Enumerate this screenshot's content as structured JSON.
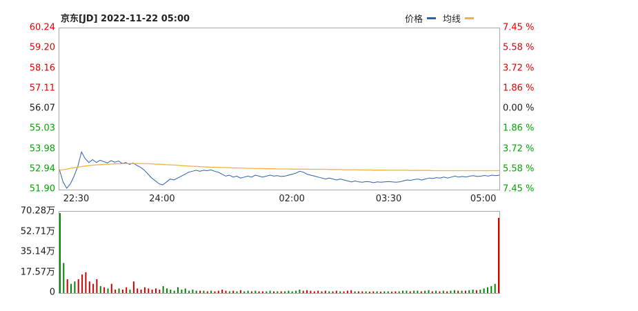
{
  "chart_data": {
    "type": "line",
    "title": "京东[JD] 2022-11-22 05:00",
    "legend_position": "top-right",
    "grid": false,
    "prev_close": 56.07,
    "x_axis": {
      "labels": [
        "22:30",
        "24:00",
        "02:00",
        "03:30",
        "05:00"
      ],
      "positions": [
        0.04,
        0.235,
        0.53,
        0.75,
        0.965
      ]
    },
    "price_axis": {
      "min": 51.9,
      "max": 60.24,
      "labels": [
        {
          "text": "60.24",
          "color": "#e60000"
        },
        {
          "text": "59.20",
          "color": "#e60000"
        },
        {
          "text": "58.16",
          "color": "#e60000"
        },
        {
          "text": "57.11",
          "color": "#e60000"
        },
        {
          "text": "56.07",
          "color": "#1a1a1a"
        },
        {
          "text": "55.03",
          "color": "#00a800"
        },
        {
          "text": "53.98",
          "color": "#00a800"
        },
        {
          "text": "52.94",
          "color": "#00a800"
        },
        {
          "text": "51.90",
          "color": "#00a800"
        }
      ]
    },
    "pct_axis": {
      "labels": [
        {
          "text": "7.45 %",
          "color": "#e60000"
        },
        {
          "text": "5.58 %",
          "color": "#e60000"
        },
        {
          "text": "3.72 %",
          "color": "#e60000"
        },
        {
          "text": "1.86 %",
          "color": "#e60000"
        },
        {
          "text": "0.00 %",
          "color": "#1a1a1a"
        },
        {
          "text": "1.86 %",
          "color": "#00a800"
        },
        {
          "text": "3.72 %",
          "color": "#00a800"
        },
        {
          "text": "5.58 %",
          "color": "#00a800"
        },
        {
          "text": "7.45 %",
          "color": "#00a800"
        }
      ]
    },
    "series": [
      {
        "name": "价格",
        "color": "#2b5fb0",
        "values": [
          52.95,
          52.3,
          51.97,
          52.2,
          52.6,
          53.1,
          53.85,
          53.5,
          53.3,
          53.45,
          53.3,
          53.42,
          53.35,
          53.28,
          53.4,
          53.32,
          53.38,
          53.25,
          53.3,
          53.2,
          53.28,
          53.15,
          53.05,
          52.9,
          52.7,
          52.5,
          52.35,
          52.2,
          52.15,
          52.3,
          52.45,
          52.4,
          52.5,
          52.6,
          52.7,
          52.8,
          52.85,
          52.9,
          52.85,
          52.9,
          52.88,
          52.92,
          52.85,
          52.8,
          52.7,
          52.6,
          52.65,
          52.55,
          52.6,
          52.5,
          52.55,
          52.6,
          52.55,
          52.65,
          52.6,
          52.55,
          52.6,
          52.65,
          52.6,
          52.62,
          52.58,
          52.6,
          52.65,
          52.7,
          52.75,
          52.85,
          52.8,
          52.7,
          52.65,
          52.6,
          52.55,
          52.5,
          52.45,
          52.5,
          52.45,
          52.4,
          52.45,
          52.4,
          52.35,
          52.3,
          52.35,
          52.3,
          52.28,
          52.32,
          52.3,
          52.26,
          52.3,
          52.28,
          52.3,
          52.32,
          52.3,
          52.28,
          52.3,
          52.35,
          52.4,
          52.38,
          52.42,
          52.45,
          52.4,
          52.45,
          52.5,
          52.48,
          52.52,
          52.5,
          52.55,
          52.5,
          52.55,
          52.6,
          52.55,
          52.58,
          52.55,
          52.6,
          52.62,
          52.58,
          52.6,
          52.63,
          52.6,
          52.65,
          52.62,
          52.65
        ]
      },
      {
        "name": "均线",
        "color": "#f0b43c",
        "values": [
          52.9,
          52.93,
          52.96,
          53.0,
          53.03,
          53.06,
          53.09,
          53.12,
          53.14,
          53.16,
          53.18,
          53.19,
          53.2,
          53.21,
          53.22,
          53.23,
          53.24,
          53.24,
          53.25,
          53.25,
          53.25,
          53.25,
          53.25,
          53.24,
          53.24,
          53.23,
          53.22,
          53.21,
          53.2,
          53.19,
          53.18,
          53.17,
          53.16,
          53.14,
          53.13,
          53.12,
          53.11,
          53.1,
          53.09,
          53.08,
          53.07,
          53.06,
          53.06,
          53.05,
          53.04,
          53.04,
          53.03,
          53.02,
          53.02,
          53.01,
          53.01,
          53.0,
          53.0,
          52.99,
          52.99,
          52.99,
          52.98,
          52.98,
          52.98,
          52.97,
          52.97,
          52.97,
          52.97,
          52.96,
          52.96,
          52.96,
          52.96,
          52.96,
          52.95,
          52.95,
          52.95,
          52.95,
          52.95,
          52.94,
          52.94,
          52.94,
          52.94,
          52.93,
          52.93,
          52.93,
          52.93,
          52.92,
          52.92,
          52.92,
          52.92,
          52.91,
          52.91,
          52.91,
          52.91,
          52.9,
          52.9,
          52.9,
          52.9,
          52.9,
          52.9,
          52.89,
          52.89,
          52.89,
          52.89,
          52.89,
          52.89,
          52.88,
          52.88,
          52.88,
          52.88,
          52.88,
          52.88,
          52.88,
          52.88,
          52.88,
          52.88,
          52.88,
          52.88,
          52.88,
          52.88,
          52.88,
          52.88,
          52.88,
          52.88,
          52.88
        ]
      }
    ],
    "volume": {
      "unit": "万",
      "max": 70.28,
      "labels": [
        "70.28万",
        "52.71万",
        "35.14万",
        "17.57万",
        "0"
      ],
      "label_color": "#1a1a1a",
      "green": "#008800",
      "red": "#d40000",
      "values": [
        69,
        26,
        12,
        8,
        10,
        12,
        16,
        18,
        10,
        8,
        12,
        6,
        5,
        4,
        8,
        3,
        4,
        3,
        5,
        3,
        10,
        4,
        3,
        5,
        4,
        3,
        4,
        3,
        6,
        4,
        3,
        2,
        5,
        3,
        4,
        2,
        3,
        2,
        2,
        2,
        1.5,
        2,
        1.5,
        2,
        3,
        2,
        1.5,
        2,
        1.5,
        2.5,
        1.5,
        2,
        1.5,
        2,
        1.5,
        1.5,
        1.5,
        2,
        1.5,
        1.5,
        1.5,
        1.5,
        2,
        1.5,
        2,
        3,
        2,
        2.5,
        2,
        1.5,
        2,
        1.5,
        2,
        1.5,
        1.5,
        2,
        1.5,
        1.5,
        2,
        2.5,
        1.5,
        1.5,
        1.5,
        1.5,
        1.2,
        1.5,
        1.5,
        1.2,
        1.5,
        1.5,
        1.2,
        1.5,
        1.5,
        2,
        2,
        1.5,
        2,
        2,
        1.5,
        2,
        2.5,
        1.5,
        2,
        1.5,
        2,
        1.5,
        2,
        2.5,
        2,
        2,
        2,
        2.5,
        3,
        2.5,
        3,
        4,
        5,
        6,
        8,
        65
      ],
      "colors": [
        "g",
        "g",
        "r",
        "g",
        "g",
        "r",
        "r",
        "r",
        "r",
        "r",
        "r",
        "g",
        "r",
        "g",
        "r",
        "r",
        "g",
        "r",
        "r",
        "g",
        "r",
        "r",
        "r",
        "r",
        "r",
        "r",
        "r",
        "r",
        "g",
        "g",
        "g",
        "g",
        "g",
        "g",
        "g",
        "g",
        "g",
        "g",
        "r",
        "g",
        "r",
        "g",
        "r",
        "r",
        "r",
        "r",
        "g",
        "r",
        "g",
        "r",
        "g",
        "g",
        "r",
        "g",
        "r",
        "r",
        "g",
        "g",
        "r",
        "g",
        "r",
        "g",
        "g",
        "g",
        "g",
        "g",
        "r",
        "r",
        "r",
        "r",
        "r",
        "r",
        "r",
        "g",
        "r",
        "r",
        "g",
        "r",
        "r",
        "r",
        "g",
        "r",
        "r",
        "g",
        "r",
        "r",
        "g",
        "r",
        "g",
        "g",
        "r",
        "r",
        "g",
        "g",
        "g",
        "r",
        "g",
        "g",
        "r",
        "g",
        "g",
        "r",
        "g",
        "r",
        "g",
        "r",
        "g",
        "g",
        "r",
        "g",
        "r",
        "g",
        "g",
        "r",
        "g",
        "g",
        "g",
        "g",
        "g",
        "r"
      ]
    }
  }
}
